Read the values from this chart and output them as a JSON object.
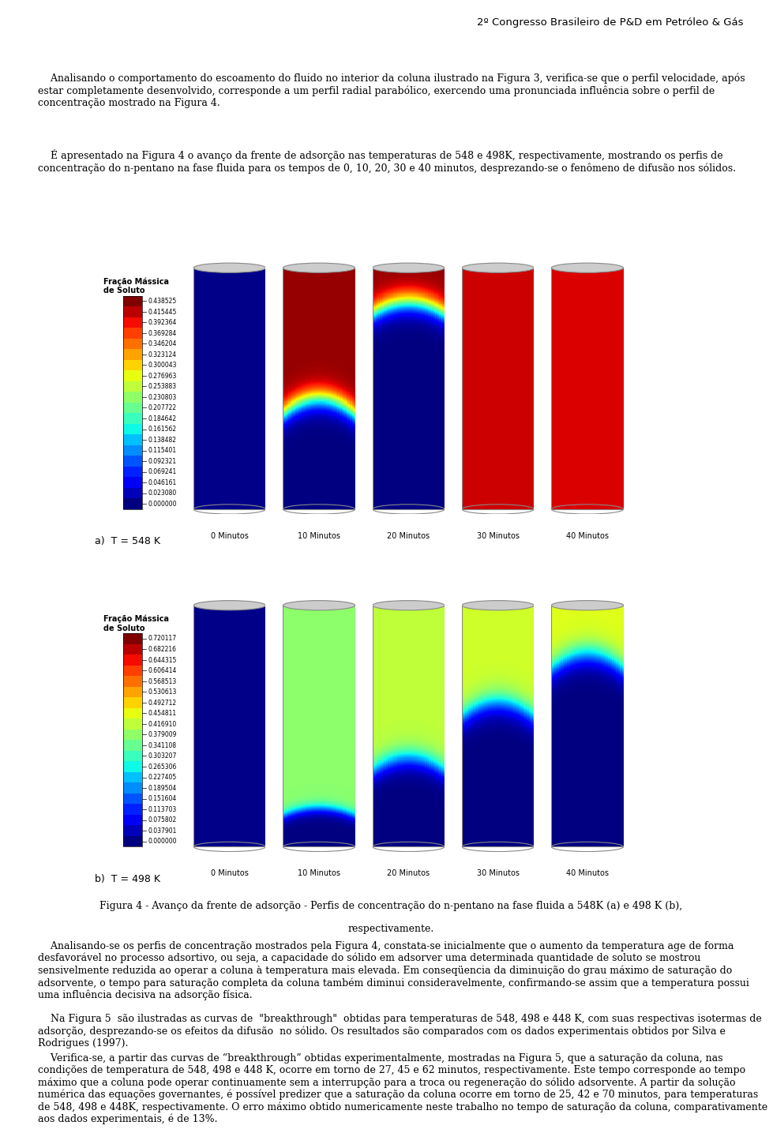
{
  "header": "2º Congresso Brasileiro de P&D em Petróleo & Gás",
  "para1": "    Analisando o comportamento do escoamento do fluido no interior da coluna ilustrado na Figura 3, verifica-se que o perfil velocidade, após estar completamente desenvolvido, corresponde a um perfil radial parabólico, exercendo uma pronunciada influência sobre o perfil de concentração mostrado na Figura 4.",
  "para2": "    É apresentado na Figura 4 o avanço da frente de adsorção nas temperaturas de 548 e 498K, respectivamente, mostrando os perfis de concentração do n-pentano na fase fluida para os tempos de 0, 10, 20, 30 e 40 minutos, desprezando-se o fenômeno de difusão nos sólidos.",
  "fig_caption_line1": "Figura 4 - Avanço da frente de adsorção - Perfis de concentração do n-pentano na fase fluida a 548K (a) e 498 K (b),",
  "fig_caption_line2": "respectivamente.",
  "para3": "    Analisando-se os perfis de concentração mostrados pela Figura 4, constata-se inicialmente que o aumento da temperatura age de forma desfavorável no processo adsortivo, ou seja, a capacidade do sólido em adsorver uma determinada quantidade de soluto se mostrou sensivelmente reduzida ao operar a coluna à temperatura mais elevada. Em conseqüencia da diminuição do grau máximo de saturação do adsorvente, o tempo para saturação completa da coluna também diminui consideravelmente, confirmando-se assim que a temperatura possui uma influência decisiva na adsorção física.",
  "para4": "    Na Figura 5  são ilustradas as curvas de  \"breakthrough\"  obtidas para temperaturas de 548, 498 e 448 K, com suas respectivas isotermas de adsorção, desprezando-se os efeitos da difusão  no sólido. Os resultados são comparados com os dados experimentais obtidos por Silva e Rodrigues (1997).",
  "para5": "    Verifica-se, a partir das curvas de “breakthrough” obtidas experimentalmente, mostradas na Figura 5, que a saturação da coluna, nas condições de temperatura de 548, 498 e 448 K, ocorre em torno de 27, 45 e 62 minutos, respectivamente. Este tempo corresponde ao tempo máximo que a coluna pode operar continuamente sem a interrupção para a troca ou regeneração do sólido adsorvente. A partir da solução numérica das equações governantes, é possível predizer que a saturação da coluna ocorre em torno de 25, 42 e 70 minutos, para temperaturas de 548, 498 e 448K, respectivamente. O erro máximo obtido numericamente neste trabalho no tempo de saturação da coluna, comparativamente aos dados experimentais, é de 13%.",
  "legend_label_a": "Fração Mássica\nde Soluto",
  "legend_label_b": "Fração Mássica\nde Soluto",
  "colorbar_values_a": [
    "0.438525",
    "0.415445",
    "0.392364",
    "0.369284",
    "0.346204",
    "0.323124",
    "0.300043",
    "0.276963",
    "0.253883",
    "0.230803",
    "0.207722",
    "0.184642",
    "0.161562",
    "0.138482",
    "0.115401",
    "0.092321",
    "0.069241",
    "0.046161",
    "0.023080",
    "0.000000"
  ],
  "colorbar_values_b": [
    "0.720117",
    "0.682216",
    "0.644315",
    "0.606414",
    "0.568513",
    "0.530613",
    "0.492712",
    "0.454811",
    "0.416910",
    "0.379009",
    "0.341108",
    "0.303207",
    "0.265306",
    "0.227405",
    "0.189504",
    "0.151604",
    "0.113703",
    "0.075802",
    "0.037901",
    "0.000000"
  ],
  "time_labels": [
    "0 Minutos",
    "10 Minutos",
    "20 Minutos",
    "30 Minutos",
    "40 Minutos"
  ],
  "panel_a_label": "a)  T = 548 K",
  "panel_b_label": "b)  T = 498 K",
  "panel_bg": "#e8e8e8",
  "page_bg": "#ffffff"
}
